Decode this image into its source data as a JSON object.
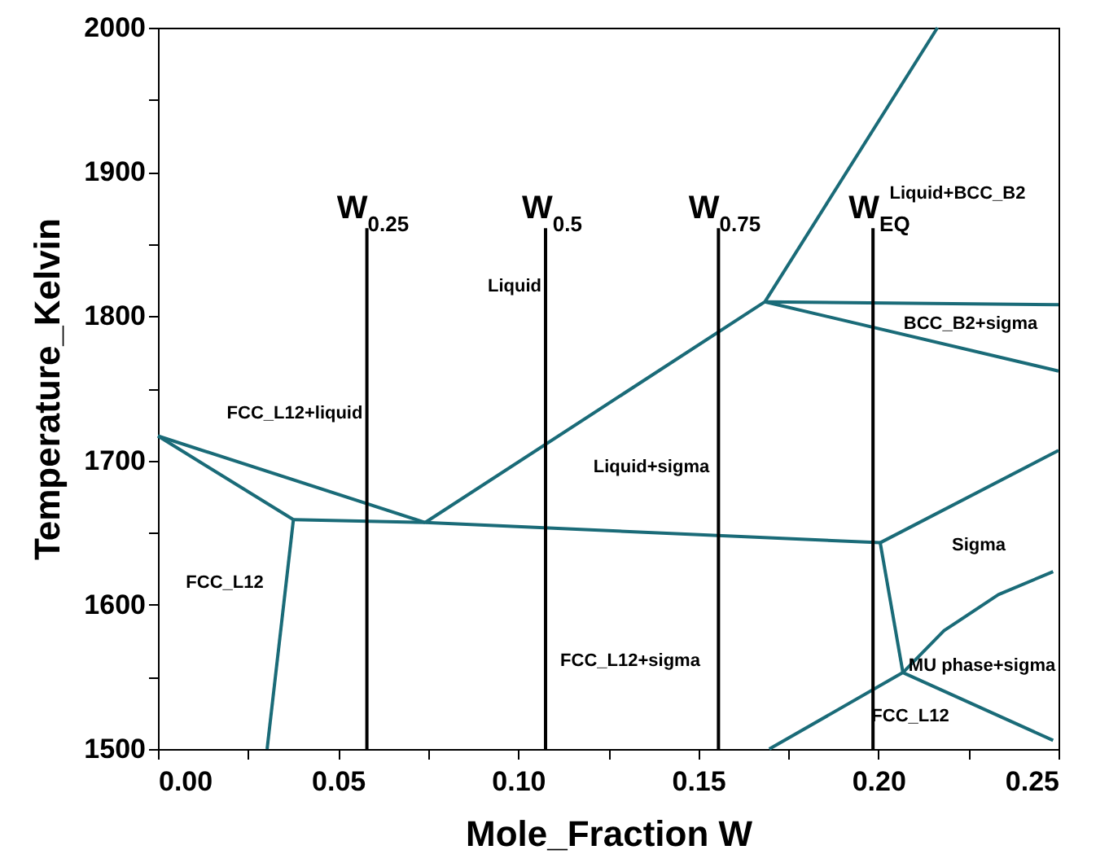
{
  "chart_data": {
    "type": "line",
    "xlabel": "Mole_Fraction W",
    "ylabel": "Temperature_Kelvin",
    "xlim": [
      0,
      0.25
    ],
    "ylim": [
      1500,
      2000
    ],
    "xticks": [
      {
        "value": 0,
        "label": "0.00"
      },
      {
        "value": 0.025,
        "label": null
      },
      0.05,
      {
        "value": 0.075,
        "label": null
      },
      {
        "value": 0.1,
        "label": "0.10"
      },
      {
        "value": 0.125,
        "label": null
      },
      0.15,
      {
        "value": 0.175,
        "label": null
      },
      {
        "value": 0.2,
        "label": "0.20"
      },
      {
        "value": 0.225,
        "label": null
      },
      0.25
    ],
    "yticks": [
      1500,
      {
        "value": 1550,
        "label": null
      },
      1600,
      {
        "value": 1650,
        "label": null
      },
      1700,
      {
        "value": 1750,
        "label": null
      },
      1800,
      {
        "value": 1850,
        "label": null
      },
      1900,
      {
        "value": 1950,
        "label": null
      },
      2000
    ],
    "grid": false,
    "line_style": "solid",
    "marker": "none",
    "series": [
      {
        "color": "#1a6b78",
        "x": [
          0,
          0.0742
        ],
        "values": [
          1717,
          1657
        ]
      },
      {
        "color": "#1a6b78",
        "x": [
          0,
          0.0376
        ],
        "values": [
          1717,
          1659
        ]
      },
      {
        "color": "#1a6b78",
        "x": [
          0.0376,
          0.0303
        ],
        "values": [
          1659,
          1500
        ]
      },
      {
        "color": "#1a6b78",
        "x": [
          0.0376,
          0.0742,
          0.2005
        ],
        "values": [
          1659,
          1657,
          1643
        ]
      },
      {
        "color": "#1a6b78",
        "x": [
          0.0742,
          0.1685,
          0.2164
        ],
        "values": [
          1657,
          1810,
          2000
        ]
      },
      {
        "color": "#1a6b78",
        "x": [
          0.1685,
          0.25
        ],
        "values": [
          1810,
          1808
        ]
      },
      {
        "color": "#1a6b78",
        "x": [
          0.1685,
          0.25
        ],
        "values": [
          1810,
          1762
        ]
      },
      {
        "color": "#1a6b78",
        "x": [
          0.2005,
          0.25
        ],
        "values": [
          1643,
          1707
        ]
      },
      {
        "color": "#1a6b78",
        "x": [
          0.2005,
          0.2068
        ],
        "values": [
          1643,
          1553
        ]
      },
      {
        "color": "#1a6b78",
        "x": [
          0.2068,
          0.2182,
          0.2333,
          0.2485
        ],
        "values": [
          1553,
          1582,
          1607,
          1623
        ]
      },
      {
        "color": "#1a6b78",
        "x": [
          0.1697,
          0.2068,
          0.2485
        ],
        "values": [
          1500,
          1553,
          1506
        ]
      },
      {
        "color": "#000000",
        "x": [
          0.058,
          0.058
        ],
        "values": [
          1500,
          1861
        ]
      },
      {
        "color": "#000000",
        "x": [
          0.1076,
          0.1076
        ],
        "values": [
          1500,
          1861
        ]
      },
      {
        "color": "#000000",
        "x": [
          0.1556,
          0.1556
        ],
        "values": [
          1500,
          1861
        ]
      },
      {
        "color": "#000000",
        "x": [
          0.1985,
          0.1985
        ],
        "values": [
          1500,
          1861
        ]
      }
    ],
    "annotations": [
      "W$_{0.25}$",
      "W$_{0.5}$",
      "W$_{0.75}$",
      "W$_{EQ}$",
      "Liquid",
      "FCC_L12+liquid",
      "Liquid+sigma",
      "Liquid+BCC_B2",
      "BCC_B2+sigma",
      "Sigma",
      "FCC_L12",
      "FCC_L12+sigma",
      "MU phase+sigma",
      "FCC_L12"
    ]
  }
}
